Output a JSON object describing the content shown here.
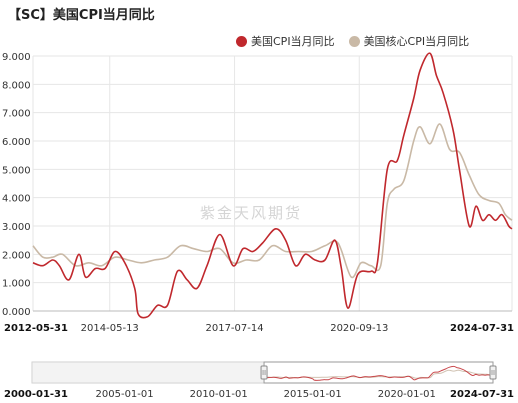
{
  "title": "【SC】美国CPI当月同比",
  "watermark": "紫金天风期货",
  "colors": {
    "series1": "#c0282d",
    "series2": "#c9b9a6"
  },
  "chart_data": {
    "type": "line",
    "title": "【SC】美国CPI当月同比",
    "xlabel": "",
    "ylabel": "",
    "ylim": [
      0,
      9
    ],
    "yticks": [
      "9.000",
      "8.000",
      "7.000",
      "6.000",
      "5.000",
      "4.000",
      "3.000",
      "2.000",
      "1.000",
      "0.000"
    ],
    "xlim": [
      "2012-05-31",
      "2024-07-31"
    ],
    "xticks": [
      "2012-05-31",
      "2014-05-13",
      "2017-07-14",
      "2020-09-13",
      "2024-07-31"
    ],
    "legend": "top-right",
    "grid": true,
    "series": [
      {
        "name": "美国CPI当月同比",
        "points": [
          [
            "2012-05-31",
            1.7
          ],
          [
            "2012-08-31",
            1.6
          ],
          [
            "2012-11-30",
            1.8
          ],
          [
            "2013-01-31",
            1.6
          ],
          [
            "2013-04-30",
            1.1
          ],
          [
            "2013-07-31",
            2.0
          ],
          [
            "2013-09-30",
            1.2
          ],
          [
            "2013-12-31",
            1.5
          ],
          [
            "2014-03-31",
            1.5
          ],
          [
            "2014-06-30",
            2.1
          ],
          [
            "2014-09-30",
            1.7
          ],
          [
            "2014-12-31",
            0.8
          ],
          [
            "2015-01-31",
            -0.1
          ],
          [
            "2015-04-30",
            -0.2
          ],
          [
            "2015-07-31",
            0.2
          ],
          [
            "2015-10-31",
            0.2
          ],
          [
            "2016-01-31",
            1.4
          ],
          [
            "2016-04-30",
            1.1
          ],
          [
            "2016-07-31",
            0.8
          ],
          [
            "2016-10-31",
            1.6
          ],
          [
            "2017-02-28",
            2.7
          ],
          [
            "2017-06-30",
            1.6
          ],
          [
            "2017-09-30",
            2.2
          ],
          [
            "2017-12-31",
            2.1
          ],
          [
            "2018-03-31",
            2.4
          ],
          [
            "2018-07-31",
            2.9
          ],
          [
            "2018-10-31",
            2.5
          ],
          [
            "2019-01-31",
            1.6
          ],
          [
            "2019-04-30",
            2.0
          ],
          [
            "2019-07-31",
            1.8
          ],
          [
            "2019-10-31",
            1.8
          ],
          [
            "2020-01-31",
            2.5
          ],
          [
            "2020-03-31",
            1.5
          ],
          [
            "2020-05-31",
            0.1
          ],
          [
            "2020-08-31",
            1.3
          ],
          [
            "2020-12-31",
            1.4
          ],
          [
            "2021-02-28",
            1.7
          ],
          [
            "2021-05-31",
            5.0
          ],
          [
            "2021-08-31",
            5.3
          ],
          [
            "2021-10-31",
            6.2
          ],
          [
            "2022-01-31",
            7.5
          ],
          [
            "2022-03-31",
            8.5
          ],
          [
            "2022-06-30",
            9.1
          ],
          [
            "2022-08-31",
            8.3
          ],
          [
            "2022-10-31",
            7.7
          ],
          [
            "2023-01-31",
            6.4
          ],
          [
            "2023-03-31",
            5.0
          ],
          [
            "2023-06-30",
            3.0
          ],
          [
            "2023-08-31",
            3.7
          ],
          [
            "2023-10-31",
            3.2
          ],
          [
            "2023-12-31",
            3.4
          ],
          [
            "2024-02-29",
            3.2
          ],
          [
            "2024-04-30",
            3.4
          ],
          [
            "2024-06-30",
            3.0
          ],
          [
            "2024-07-31",
            2.9
          ]
        ]
      },
      {
        "name": "美国核心CPI当月同比",
        "points": [
          [
            "2012-05-31",
            2.3
          ],
          [
            "2012-08-31",
            1.9
          ],
          [
            "2012-11-30",
            1.9
          ],
          [
            "2013-02-28",
            2.0
          ],
          [
            "2013-06-30",
            1.6
          ],
          [
            "2013-10-31",
            1.7
          ],
          [
            "2014-02-28",
            1.6
          ],
          [
            "2014-06-30",
            1.9
          ],
          [
            "2014-10-31",
            1.8
          ],
          [
            "2015-02-28",
            1.7
          ],
          [
            "2015-06-30",
            1.8
          ],
          [
            "2015-10-31",
            1.9
          ],
          [
            "2016-02-29",
            2.3
          ],
          [
            "2016-06-30",
            2.2
          ],
          [
            "2016-10-31",
            2.1
          ],
          [
            "2017-02-28",
            2.2
          ],
          [
            "2017-06-30",
            1.7
          ],
          [
            "2017-10-31",
            1.8
          ],
          [
            "2018-02-28",
            1.8
          ],
          [
            "2018-06-30",
            2.3
          ],
          [
            "2018-10-31",
            2.1
          ],
          [
            "2019-02-28",
            2.1
          ],
          [
            "2019-06-30",
            2.1
          ],
          [
            "2019-10-31",
            2.3
          ],
          [
            "2020-02-29",
            2.4
          ],
          [
            "2020-06-30",
            1.2
          ],
          [
            "2020-09-30",
            1.7
          ],
          [
            "2020-12-31",
            1.6
          ],
          [
            "2021-03-31",
            1.6
          ],
          [
            "2021-05-31",
            3.8
          ],
          [
            "2021-07-31",
            4.3
          ],
          [
            "2021-10-31",
            4.6
          ],
          [
            "2022-01-31",
            6.0
          ],
          [
            "2022-03-31",
            6.5
          ],
          [
            "2022-06-30",
            5.9
          ],
          [
            "2022-09-30",
            6.6
          ],
          [
            "2022-12-31",
            5.7
          ],
          [
            "2023-03-31",
            5.6
          ],
          [
            "2023-06-30",
            4.8
          ],
          [
            "2023-09-30",
            4.1
          ],
          [
            "2023-12-31",
            3.9
          ],
          [
            "2024-03-31",
            3.8
          ],
          [
            "2024-05-31",
            3.4
          ],
          [
            "2024-07-31",
            3.2
          ]
        ]
      }
    ]
  },
  "navigator": {
    "xticks": [
      "2000-01-31",
      "2005-01-01",
      "2010-01-01",
      "2015-01-01",
      "2020-01-01",
      "2024-07-31"
    ],
    "range": [
      "2000-01-31",
      "2024-07-31"
    ],
    "selection": [
      "2012-05-31",
      "2024-07-31"
    ]
  }
}
